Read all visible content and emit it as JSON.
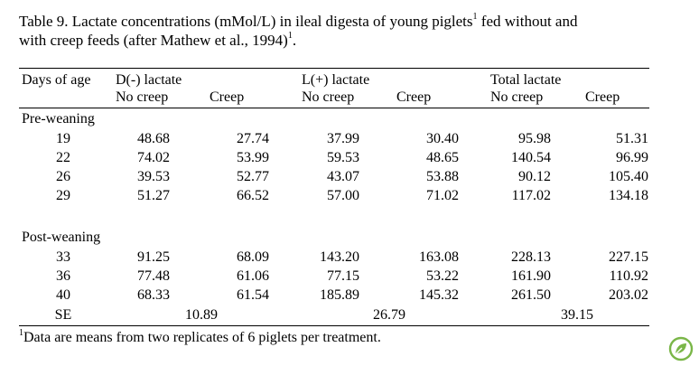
{
  "caption": {
    "line1_prefix": "Table 9. Lactate concentrations (mMol/L) in ileal digesta of young piglets",
    "line1_sup": "1",
    "line1_suffix": " fed without and",
    "line2_prefix": "with creep feeds (after Mathew et al., 1994)",
    "line2_sup": "1",
    "line2_suffix": "."
  },
  "header": {
    "days": "Days of age",
    "groups": [
      "D(-) lactate",
      "L(+) lactate",
      "Total lactate"
    ],
    "sub": [
      "No creep",
      "Creep",
      "No creep",
      "Creep",
      "No creep",
      "Creep"
    ]
  },
  "sections": [
    {
      "label": "Pre-weaning",
      "rows": [
        {
          "day": "19",
          "v": [
            "48.68",
            "27.74",
            "37.99",
            "30.40",
            "95.98",
            "51.31"
          ]
        },
        {
          "day": "22",
          "v": [
            "74.02",
            "53.99",
            "59.53",
            "48.65",
            "140.54",
            "96.99"
          ]
        },
        {
          "day": "26",
          "v": [
            "39.53",
            "52.77",
            "43.07",
            "53.88",
            "90.12",
            "105.40"
          ]
        },
        {
          "day": "29",
          "v": [
            "51.27",
            "66.52",
            "57.00",
            "71.02",
            "117.02",
            "134.18"
          ]
        }
      ]
    },
    {
      "label": "Post-weaning",
      "rows": [
        {
          "day": "33",
          "v": [
            "91.25",
            "68.09",
            "143.20",
            "163.08",
            "228.13",
            "227.15"
          ]
        },
        {
          "day": "36",
          "v": [
            "77.48",
            "61.06",
            "77.15",
            "53.22",
            "161.90",
            "110.92"
          ]
        },
        {
          "day": "40",
          "v": [
            "68.33",
            "61.54",
            "185.89",
            "145.32",
            "261.50",
            "203.02"
          ]
        }
      ]
    }
  ],
  "se": {
    "label": "SE",
    "values": [
      "10.89",
      "26.79",
      "39.15"
    ]
  },
  "footnote": {
    "sup": "1",
    "text": "Data are means from two replicates of 6 piglets per treatment."
  },
  "brand": {
    "icon": "leaf-icon",
    "color": "#7ab648"
  }
}
